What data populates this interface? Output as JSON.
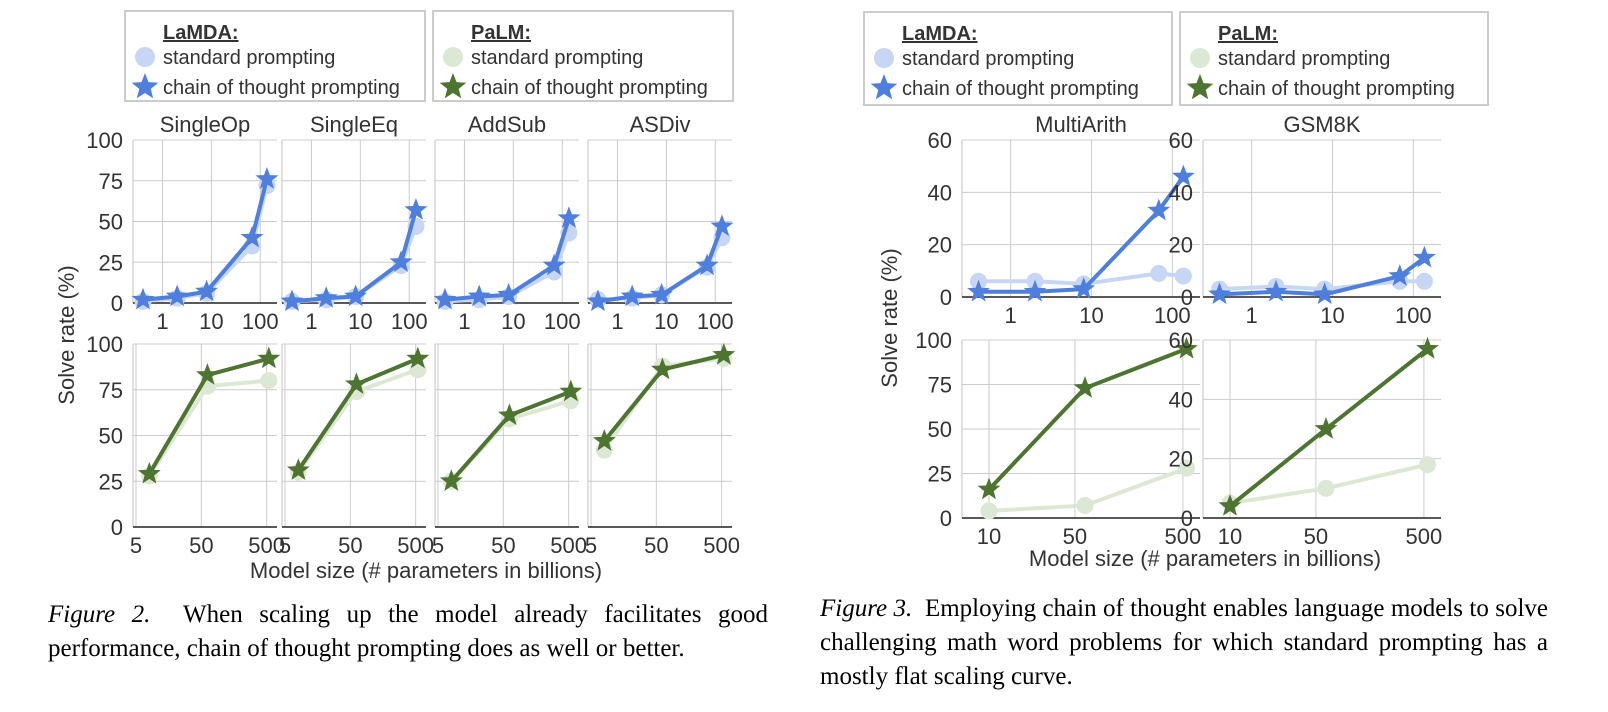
{
  "colors": {
    "lamda_cot": "#4f7fdc",
    "lamda_std": "#c6d6f4",
    "palm_cot": "#4e7431",
    "palm_std": "#dde8d4",
    "grid": "#cccccc",
    "text": "#333333"
  },
  "figure2": {
    "ylabel": "Solve rate (%)",
    "xlabel": "Model size (# parameters in billions)",
    "legend": {
      "lamda": {
        "title": "LaMDA:",
        "standard": "standard prompting",
        "cot": "chain of thought prompting"
      },
      "palm": {
        "title": "PaLM:",
        "standard": "standard prompting",
        "cot": "chain of thought prompting"
      }
    }
  },
  "figure3": {
    "ylabel": "Solve rate (%)",
    "xlabel": "Model size (# parameters in billions)",
    "legend": {
      "lamda": {
        "title": "LaMDA:",
        "standard": "standard prompting",
        "cot": "chain of thought prompting"
      },
      "palm": {
        "title": "PaLM:",
        "standard": "standard prompting",
        "cot": "chain of thought prompting"
      }
    }
  },
  "captions": {
    "fig2_label": "Figure 2.",
    "fig2_text": "When scaling up the model already facilitates good performance, chain of thought prompting does as well or better.",
    "fig3_label": "Figure 3.",
    "fig3_text": "Employing chain of thought enables language models to solve challenging math word problems for which standard prompting has a mostly flat scaling curve."
  },
  "chart_data": [
    {
      "type": "line",
      "title": "SingleOp",
      "model": "LaMDA",
      "xscale": "log",
      "xticks": [
        "1",
        "10",
        "100"
      ],
      "ylim": [
        0,
        100
      ],
      "yticks": [
        "0",
        "25",
        "50",
        "75",
        "100"
      ],
      "x": [
        0.4,
        2,
        8,
        68,
        137
      ],
      "series": [
        {
          "name": "standard prompting",
          "values": [
            1,
            3,
            6,
            35,
            72
          ]
        },
        {
          "name": "chain of thought prompting",
          "values": [
            2,
            4,
            7,
            40,
            76
          ]
        }
      ]
    },
    {
      "type": "line",
      "title": "SingleEq",
      "model": "LaMDA",
      "xscale": "log",
      "xticks": [
        "1",
        "10",
        "100"
      ],
      "ylim": [
        0,
        100
      ],
      "yticks": [
        "0",
        "25",
        "50",
        "75",
        "100"
      ],
      "x": [
        0.4,
        2,
        8,
        68,
        137
      ],
      "series": [
        {
          "name": "standard prompting",
          "values": [
            1,
            2,
            4,
            23,
            47
          ]
        },
        {
          "name": "chain of thought prompting",
          "values": [
            1,
            3,
            4,
            25,
            57
          ]
        }
      ]
    },
    {
      "type": "line",
      "title": "AddSub",
      "model": "LaMDA",
      "xscale": "log",
      "xticks": [
        "1",
        "10",
        "100"
      ],
      "ylim": [
        0,
        100
      ],
      "yticks": [
        "0",
        "25",
        "50",
        "75",
        "100"
      ],
      "x": [
        0.4,
        2,
        8,
        68,
        137
      ],
      "series": [
        {
          "name": "standard prompting",
          "values": [
            1,
            2,
            4,
            19,
            43
          ]
        },
        {
          "name": "chain of thought prompting",
          "values": [
            2,
            4,
            5,
            23,
            52
          ]
        }
      ]
    },
    {
      "type": "line",
      "title": "ASDiv",
      "model": "LaMDA",
      "xscale": "log",
      "xticks": [
        "1",
        "10",
        "100"
      ],
      "ylim": [
        0,
        100
      ],
      "yticks": [
        "0",
        "25",
        "50",
        "75",
        "100"
      ],
      "x": [
        0.4,
        2,
        8,
        68,
        137
      ],
      "series": [
        {
          "name": "standard prompting",
          "values": [
            2,
            3,
            5,
            22,
            40
          ]
        },
        {
          "name": "chain of thought prompting",
          "values": [
            1,
            4,
            5,
            23,
            47
          ]
        }
      ]
    },
    {
      "type": "line",
      "title": "",
      "panel_of": "SingleOp",
      "model": "PaLM",
      "xscale": "log",
      "xticks": [
        "5",
        "50",
        "500"
      ],
      "ylim": [
        0,
        100
      ],
      "yticks": [
        "0",
        "25",
        "50",
        "75",
        "100"
      ],
      "x": [
        8,
        62,
        540
      ],
      "series": [
        {
          "name": "standard prompting",
          "values": [
            28,
            77,
            80
          ]
        },
        {
          "name": "chain of thought prompting",
          "values": [
            29,
            83,
            92
          ]
        }
      ]
    },
    {
      "type": "line",
      "title": "",
      "panel_of": "SingleEq",
      "model": "PaLM",
      "xscale": "log",
      "xticks": [
        "5",
        "50",
        "500"
      ],
      "ylim": [
        0,
        100
      ],
      "yticks": [
        "0",
        "25",
        "50",
        "75",
        "100"
      ],
      "x": [
        8,
        62,
        540
      ],
      "series": [
        {
          "name": "standard prompting",
          "values": [
            30,
            74,
            86
          ]
        },
        {
          "name": "chain of thought prompting",
          "values": [
            31,
            78,
            92
          ]
        }
      ]
    },
    {
      "type": "line",
      "title": "",
      "panel_of": "AddSub",
      "model": "PaLM",
      "xscale": "log",
      "xticks": [
        "5",
        "50",
        "500"
      ],
      "ylim": [
        0,
        100
      ],
      "yticks": [
        "0",
        "25",
        "50",
        "75",
        "100"
      ],
      "x": [
        8,
        62,
        540
      ],
      "series": [
        {
          "name": "standard prompting",
          "values": [
            25,
            59,
            69
          ]
        },
        {
          "name": "chain of thought prompting",
          "values": [
            25,
            61,
            74
          ]
        }
      ]
    },
    {
      "type": "line",
      "title": "",
      "panel_of": "ASDiv",
      "model": "PaLM",
      "xscale": "log",
      "xticks": [
        "5",
        "50",
        "500"
      ],
      "ylim": [
        0,
        100
      ],
      "yticks": [
        "0",
        "25",
        "50",
        "75",
        "100"
      ],
      "x": [
        8,
        62,
        540
      ],
      "series": [
        {
          "name": "standard prompting",
          "values": [
            42,
            88,
            92
          ]
        },
        {
          "name": "chain of thought prompting",
          "values": [
            47,
            86,
            94
          ]
        }
      ]
    },
    {
      "type": "line",
      "title": "MultiArith",
      "model": "LaMDA",
      "xscale": "log",
      "xticks": [
        "1",
        "10",
        "100"
      ],
      "ylim": [
        0,
        60
      ],
      "yticks": [
        "0",
        "20",
        "40",
        "60"
      ],
      "x": [
        0.4,
        2,
        8,
        68,
        137
      ],
      "series": [
        {
          "name": "standard prompting",
          "values": [
            6,
            6,
            5,
            9,
            8
          ]
        },
        {
          "name": "chain of thought prompting",
          "values": [
            2,
            2,
            3,
            33,
            46
          ]
        }
      ]
    },
    {
      "type": "line",
      "title": "GSM8K",
      "model": "LaMDA",
      "xscale": "log",
      "xticks": [
        "1",
        "10",
        "100"
      ],
      "ylim": [
        0,
        60
      ],
      "yticks": [
        "0",
        "20",
        "40",
        "60"
      ],
      "x": [
        0.4,
        2,
        8,
        68,
        137
      ],
      "series": [
        {
          "name": "standard prompting",
          "values": [
            3,
            4,
            3,
            6,
            6
          ]
        },
        {
          "name": "chain of thought prompting",
          "values": [
            1,
            2,
            1,
            8,
            15
          ]
        }
      ]
    },
    {
      "type": "line",
      "title": "",
      "panel_of": "MultiArith",
      "model": "PaLM",
      "xscale": "log",
      "xticks": [
        "10",
        "50",
        "500"
      ],
      "ylim": [
        0,
        100
      ],
      "yticks": [
        "0",
        "25",
        "50",
        "75",
        "100"
      ],
      "x": [
        8,
        62,
        540
      ],
      "series": [
        {
          "name": "standard prompting",
          "values": [
            4,
            7,
            28
          ]
        },
        {
          "name": "chain of thought prompting",
          "values": [
            16,
            73,
            95
          ]
        }
      ]
    },
    {
      "type": "line",
      "title": "",
      "panel_of": "GSM8K",
      "model": "PaLM",
      "xscale": "log",
      "xticks": [
        "10",
        "50",
        "500"
      ],
      "ylim": [
        0,
        60
      ],
      "yticks": [
        "0",
        "20",
        "40",
        "60"
      ],
      "x": [
        8,
        62,
        540
      ],
      "series": [
        {
          "name": "standard prompting",
          "values": [
            5,
            10,
            18
          ]
        },
        {
          "name": "chain of thought prompting",
          "values": [
            4,
            30,
            57
          ]
        }
      ]
    }
  ]
}
